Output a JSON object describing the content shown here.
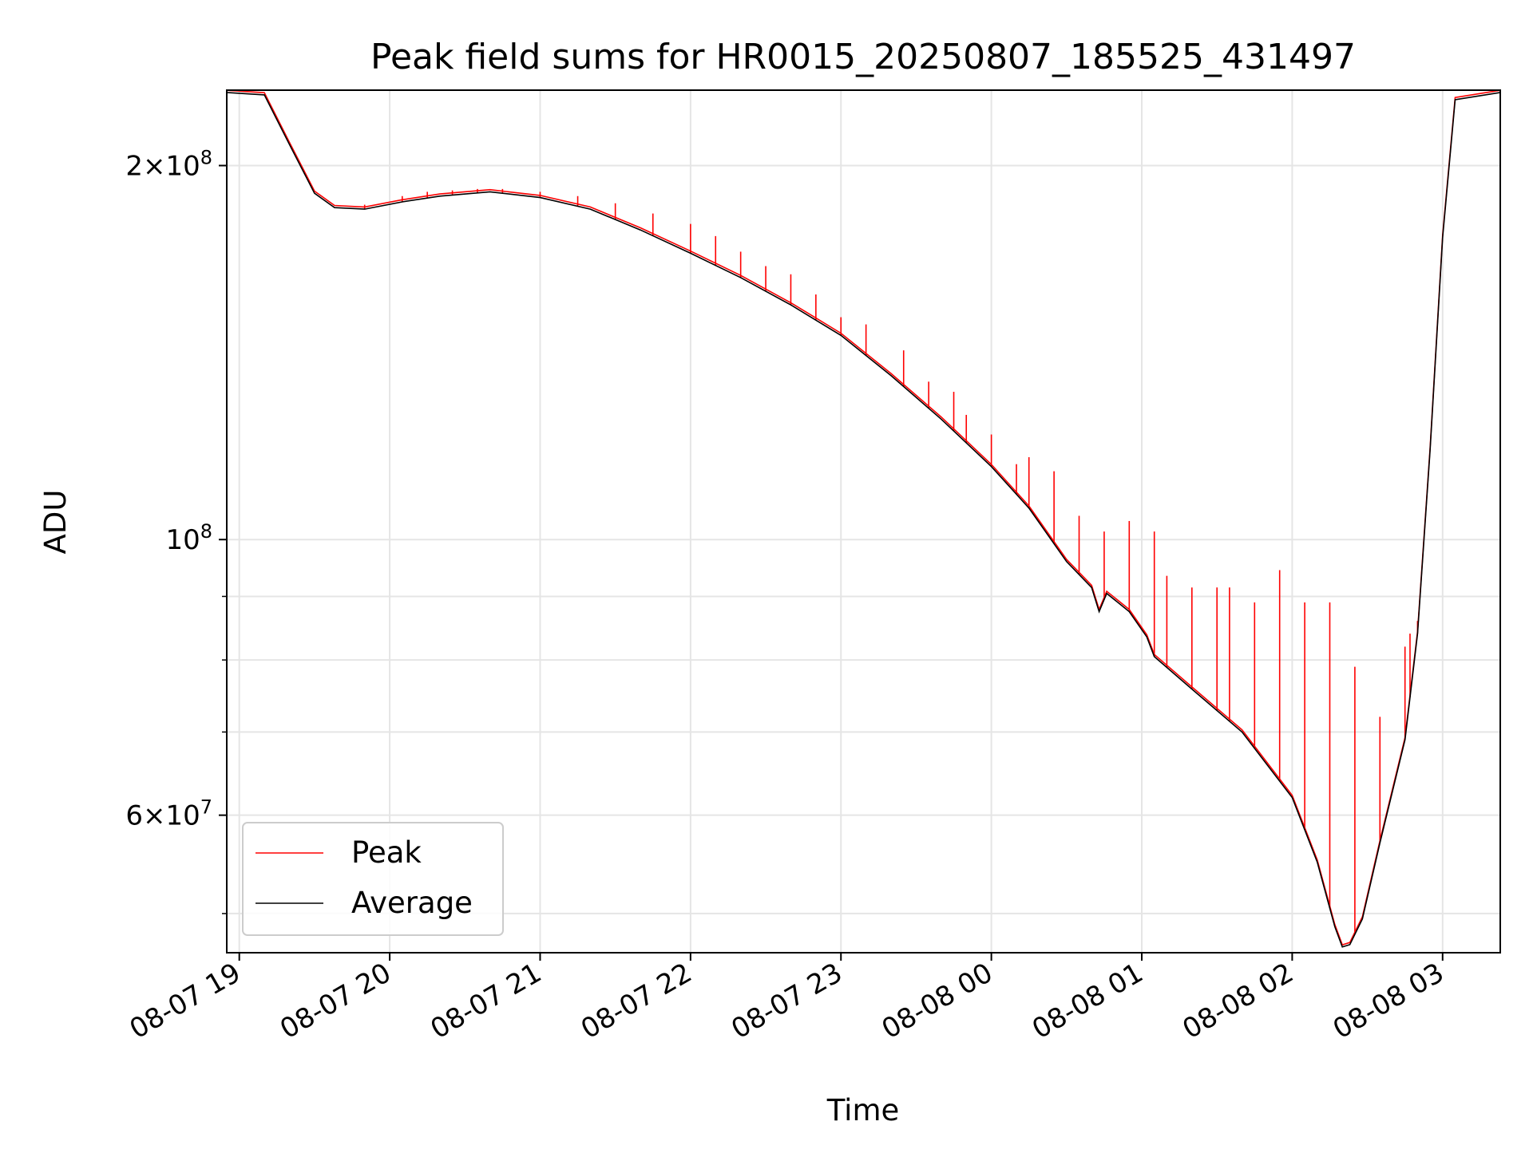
{
  "chart_data": {
    "type": "line",
    "title": "Peak field sums for HR0015_20250807_185525_431497",
    "xlabel": "Time",
    "ylabel": "ADU",
    "x_ticks": [
      "08-07 19",
      "08-07 20",
      "08-07 21",
      "08-07 22",
      "08-07 23",
      "08-08 00",
      "08-08 01",
      "08-08 02",
      "08-08 03"
    ],
    "x_range": [
      "2025-08-07 18:55",
      "2025-08-08 03:23"
    ],
    "y_scale": "log",
    "y_range": [
      46500000,
      230000000
    ],
    "y_major_ticks": [
      {
        "value": 200000000,
        "mantissa": "2",
        "exponent": "8"
      },
      {
        "value": 100000000,
        "mantissa": "",
        "exponent": "8"
      },
      {
        "value": 60000000,
        "mantissa": "6",
        "exponent": "7"
      }
    ],
    "y_minor_ticks": [
      50000000,
      70000000,
      80000000,
      90000000
    ],
    "grid": true,
    "legend": {
      "position": "lower-left",
      "entries": [
        "Peak",
        "Average"
      ]
    },
    "colors": {
      "Peak": "#ff0000",
      "Average": "#000000"
    },
    "series": [
      {
        "name": "Average",
        "x": [
          "2025-08-07 18:55",
          "2025-08-07 19:10",
          "2025-08-07 19:20",
          "2025-08-07 19:30",
          "2025-08-07 19:38",
          "2025-08-07 19:50",
          "2025-08-07 20:05",
          "2025-08-07 20:20",
          "2025-08-07 20:40",
          "2025-08-07 21:00",
          "2025-08-07 21:20",
          "2025-08-07 21:40",
          "2025-08-07 22:00",
          "2025-08-07 22:20",
          "2025-08-07 22:40",
          "2025-08-07 23:00",
          "2025-08-07 23:20",
          "2025-08-07 23:40",
          "2025-08-08 00:00",
          "2025-08-08 00:15",
          "2025-08-08 00:30",
          "2025-08-08 00:40",
          "2025-08-08 00:43",
          "2025-08-08 00:46",
          "2025-08-08 00:55",
          "2025-08-08 01:02",
          "2025-08-08 01:05",
          "2025-08-08 01:20",
          "2025-08-08 01:40",
          "2025-08-08 02:00",
          "2025-08-08 02:10",
          "2025-08-08 02:17",
          "2025-08-08 02:20",
          "2025-08-08 02:23",
          "2025-08-08 02:28",
          "2025-08-08 02:35",
          "2025-08-08 02:45",
          "2025-08-08 02:50",
          "2025-08-08 02:55",
          "2025-08-08 03:00",
          "2025-08-08 03:05",
          "2025-08-08 03:23"
        ],
        "y": [
          229000000,
          228000000,
          208000000,
          190000000,
          185000000,
          184500000,
          187000000,
          189000000,
          190500000,
          188500000,
          184500000,
          177500000,
          170000000,
          162500000,
          154500000,
          146000000,
          135500000,
          125000000,
          114500000,
          106000000,
          96000000,
          91500000,
          87500000,
          90500000,
          87500000,
          83500000,
          80500000,
          75800000,
          70000000,
          62000000,
          55000000,
          48800000,
          47000000,
          47200000,
          49500000,
          57000000,
          69000000,
          84000000,
          118000000,
          175000000,
          226000000,
          229000000
        ]
      },
      {
        "name": "Peak",
        "x": [
          "2025-08-07 19:50",
          "2025-08-07 20:05",
          "2025-08-07 20:15",
          "2025-08-07 20:25",
          "2025-08-07 20:35",
          "2025-08-07 20:45",
          "2025-08-07 21:00",
          "2025-08-07 21:15",
          "2025-08-07 21:30",
          "2025-08-07 21:45",
          "2025-08-07 22:00",
          "2025-08-07 22:10",
          "2025-08-07 22:20",
          "2025-08-07 22:30",
          "2025-08-07 22:40",
          "2025-08-07 22:50",
          "2025-08-07 23:00",
          "2025-08-07 23:10",
          "2025-08-07 23:25",
          "2025-08-07 23:35",
          "2025-08-07 23:45",
          "2025-08-07 23:50",
          "2025-08-08 00:00",
          "2025-08-08 00:10",
          "2025-08-08 00:15",
          "2025-08-08 00:25",
          "2025-08-08 00:35",
          "2025-08-08 00:45",
          "2025-08-08 00:55",
          "2025-08-08 01:05",
          "2025-08-08 01:10",
          "2025-08-08 01:20",
          "2025-08-08 01:30",
          "2025-08-08 01:35",
          "2025-08-08 01:45",
          "2025-08-08 01:55",
          "2025-08-08 02:05",
          "2025-08-08 02:15",
          "2025-08-08 02:25",
          "2025-08-08 02:35",
          "2025-08-08 02:45",
          "2025-08-08 02:47",
          "2025-08-08 02:50"
        ],
        "y": [
          186000000,
          189000000,
          190500000,
          191000000,
          191500000,
          191500000,
          190500000,
          189000000,
          186500000,
          183000000,
          179500000,
          175500000,
          170500000,
          166000000,
          163500000,
          157500000,
          151000000,
          149000000,
          142000000,
          134000000,
          131500000,
          126000000,
          121500000,
          115000000,
          116500000,
          113500000,
          104500000,
          101500000,
          103500000,
          101500000,
          93500000,
          91500000,
          91500000,
          91500000,
          89000000,
          94500000,
          89000000,
          89000000,
          79000000,
          72000000,
          82000000,
          84000000,
          86000000
        ]
      }
    ]
  }
}
